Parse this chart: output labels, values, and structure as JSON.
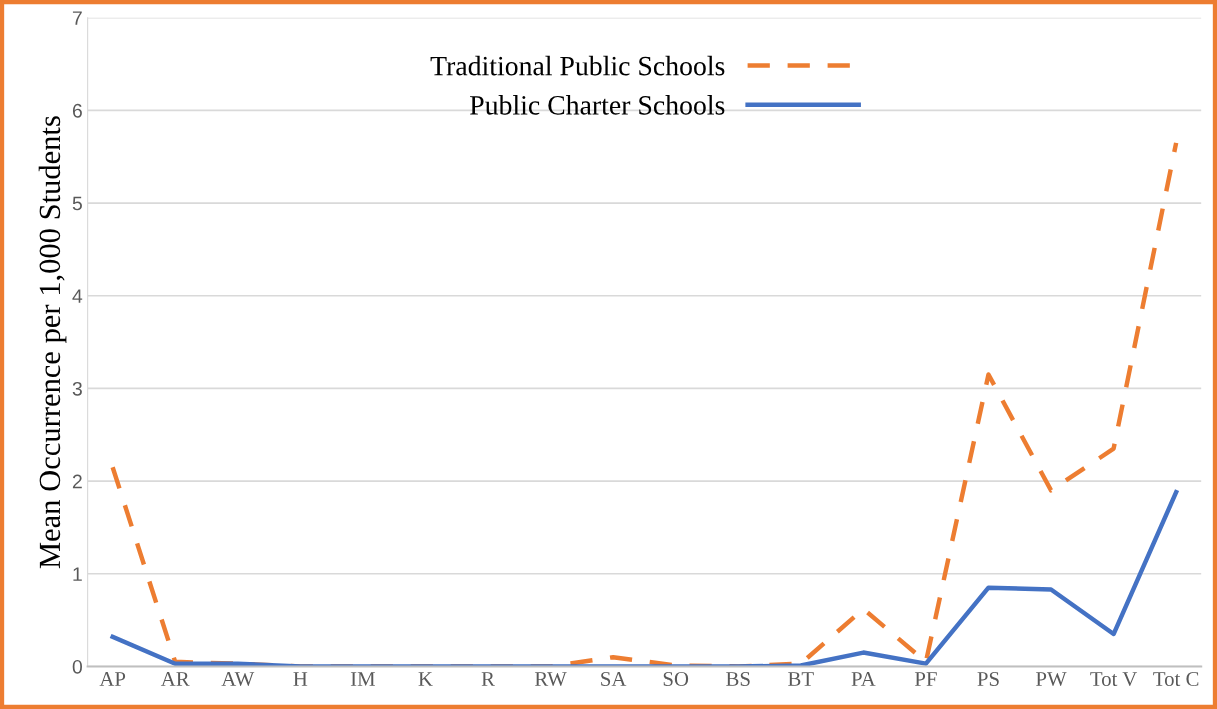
{
  "chart_data": {
    "type": "line",
    "ylabel": "Mean Occurrence per 1,000 Students",
    "categories": [
      "AP",
      "AR",
      "AW",
      "H",
      "IM",
      "K",
      "R",
      "RW",
      "SA",
      "SO",
      "BS",
      "BT",
      "PA",
      "PF",
      "PS",
      "PW",
      "Tot V",
      "Tot C"
    ],
    "series": [
      {
        "name": "Traditional Public Schools",
        "color": "#ed7d31",
        "line_style": "dashed",
        "values": [
          2.15,
          0.05,
          0.03,
          0,
          0,
          0,
          0,
          0,
          0.1,
          0.01,
          0,
          0.03,
          0.62,
          0.05,
          3.15,
          1.9,
          2.35,
          5.65
        ]
      },
      {
        "name": "Public Charter Schools",
        "color": "#4472c4",
        "line_style": "solid",
        "values": [
          0.32,
          0.03,
          0.03,
          0,
          0,
          0,
          0,
          0,
          0,
          0,
          0,
          0.01,
          0.15,
          0.03,
          0.85,
          0.83,
          0.35,
          1.88
        ]
      }
    ],
    "ylim": [
      0,
      7
    ],
    "yticks": [
      0,
      1,
      2,
      3,
      4,
      5,
      6,
      7
    ],
    "grid": "y",
    "legend": "top",
    "marker": "none"
  }
}
